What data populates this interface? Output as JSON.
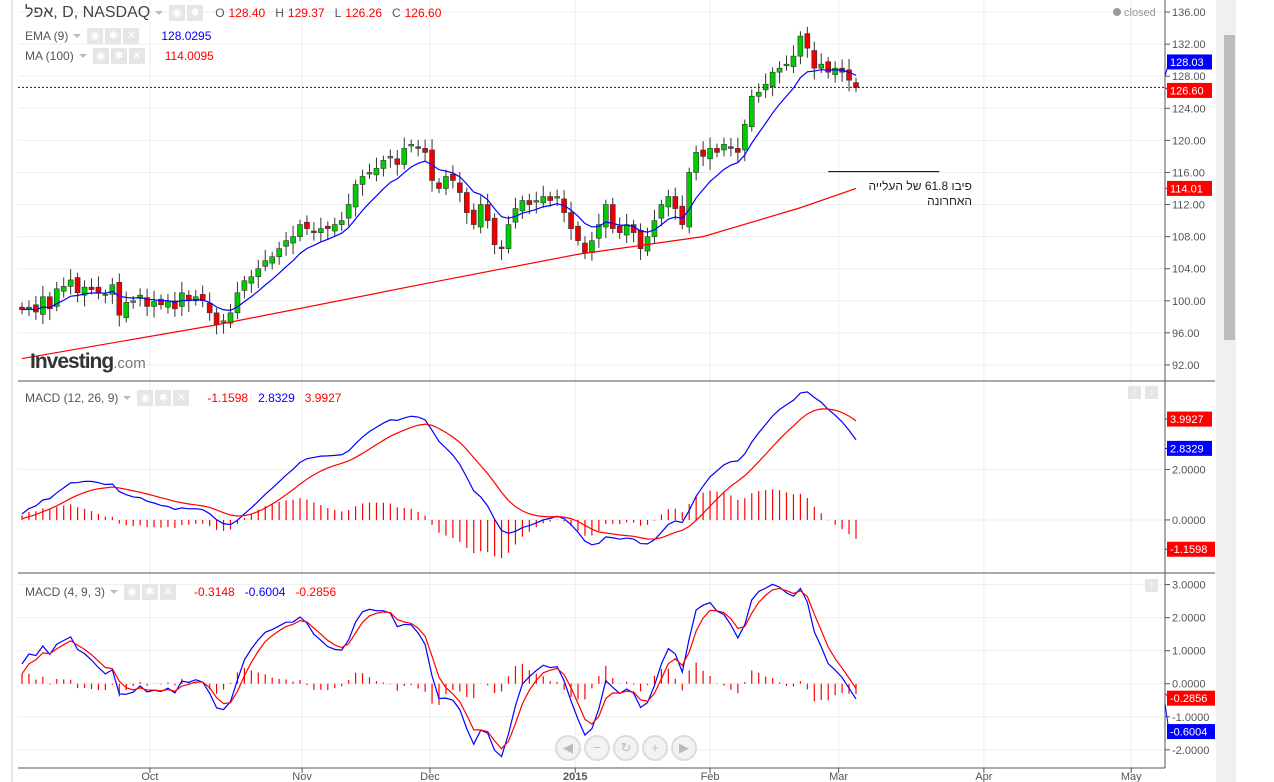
{
  "header": {
    "symbol_title": "אפל, D, NASDAQ",
    "ohlc": {
      "o_label": "O",
      "o": "128.40",
      "h_label": "H",
      "h": "129.37",
      "l_label": "L",
      "l": "126.26",
      "c_label": "C",
      "c": "126.60"
    },
    "status": "closed"
  },
  "indicators": {
    "ema": {
      "label": "EMA (9)",
      "value": "128.0295"
    },
    "ma": {
      "label": "MA (100)",
      "value": "114.0095"
    },
    "macd1": {
      "label": "MACD (12, 26, 9)",
      "hist": "-1.1598",
      "macd": "2.8329",
      "signal": "3.9927"
    },
    "macd2": {
      "label": "MACD (4, 9, 3)",
      "hist": "-0.3148",
      "macd": "-0.6004",
      "signal": "-0.2856"
    }
  },
  "logo": {
    "main": "Investing",
    "suffix": ".com"
  },
  "annotation": {
    "line1": "פיבו 61.8 של העלייה",
    "line2": "האחרונה",
    "price": 116.1,
    "from_bar": 116,
    "to_bar": 132
  },
  "nav": {
    "prev": "◀",
    "zoom_out": "−",
    "reset": "↻",
    "zoom_in": "+",
    "next": "▶"
  },
  "pane_buttons": {
    "up": "↑",
    "down": "↓"
  },
  "colors": {
    "up": "#00cc00",
    "down": "#ee0000",
    "ema": "#0000ff",
    "ma": "#ff0000",
    "macd": "#0000ff",
    "signal": "#ff0000",
    "hist": "#ff0000"
  },
  "chart_data": {
    "type": "candlestick",
    "x_ticks": [
      {
        "label": "Oct",
        "bar": 18.4
      },
      {
        "label": "Nov",
        "bar": 40.3
      },
      {
        "label": "Dec",
        "bar": 58.7
      },
      {
        "label": "2015",
        "bar": 79.6
      },
      {
        "label": "Feb",
        "bar": 99
      },
      {
        "label": "Mar",
        "bar": 117.5
      },
      {
        "label": "Apr",
        "bar": 138.4
      },
      {
        "label": "May",
        "bar": 159.6
      }
    ],
    "price_axis": {
      "ticks": [
        "136.00",
        "132.00",
        "128.00",
        "124.00",
        "120.00",
        "116.00",
        "112.00",
        "108.00",
        "104.00",
        "100.00",
        "96.00",
        "92.00"
      ],
      "range": [
        90,
        137.5
      ]
    },
    "price_labels": [
      {
        "value": "128.03",
        "color": "#0000ff"
      },
      {
        "value": "126.60",
        "color": "#ff0000"
      },
      {
        "value": "114.01",
        "color": "#ff0000"
      }
    ],
    "last_price": 126.6,
    "close": [
      98.9,
      99.2,
      98.6,
      100.5,
      99.0,
      101.5,
      101.8,
      102.6,
      101.0,
      101.7,
      101.4,
      101.0,
      100.8,
      102.0,
      98.2,
      99.8,
      100.0,
      100.7,
      99.3,
      99.9,
      99.5,
      100.0,
      99.0,
      101.0,
      100.0,
      100.5,
      100.0,
      98.5,
      97.0,
      97.5,
      98.5,
      101.0,
      102.5,
      103.0,
      104.0,
      105.0,
      105.5,
      106.5,
      107.5,
      108.0,
      109.5,
      109.0,
      108.5,
      109.0,
      109.0,
      109.5,
      110.0,
      112.0,
      114.5,
      115.5,
      116.0,
      116.5,
      117.5,
      118.0,
      117.0,
      119.0,
      119.5,
      119.0,
      118.5,
      115.0,
      114.0,
      115.5,
      115.0,
      113.5,
      111.0,
      109.5,
      112.0,
      110.0,
      107.0,
      106.5,
      109.5,
      111.5,
      112.5,
      112.0,
      112.5,
      113.0,
      112.5,
      113.0,
      111.0,
      109.0,
      107.5,
      106.0,
      107.5,
      109.5,
      112.0,
      109.0,
      108.5,
      109.5,
      108.5,
      106.5,
      108.0,
      110.0,
      112.0,
      113.0,
      111.5,
      109.5,
      116.0,
      118.5,
      118.0,
      119.0,
      118.5,
      119.5,
      119.0,
      118.5,
      122.0,
      125.5,
      126.0,
      127.0,
      128.5,
      129.0,
      129.5,
      130.5,
      133.0,
      131.5,
      129.0,
      129.5,
      128.5,
      129.0,
      128.5,
      127.5,
      126.6
    ],
    "ma100_points": [
      [
        0,
        92.8
      ],
      [
        28,
        97
      ],
      [
        59,
        102.3
      ],
      [
        80,
        105.8
      ],
      [
        98,
        108
      ],
      [
        112,
        111.6
      ],
      [
        120,
        114.0
      ]
    ],
    "macd1_axis": {
      "ticks": [
        "2.0000",
        "0.0000"
      ],
      "range": [
        -2.1,
        5.5
      ],
      "labels": [
        {
          "value": "3.9927",
          "color": "#ff0000"
        },
        {
          "value": "2.8329",
          "color": "#0000ff"
        },
        {
          "value": "-1.1598",
          "color": "#ff0000"
        }
      ]
    },
    "macd2_axis": {
      "ticks": [
        "3.0000",
        "2.0000",
        "1.0000",
        "0.0000",
        "-1.0000",
        "-2.0000"
      ],
      "range": [
        -2.55,
        3.35
      ],
      "labels": [
        {
          "value": "-0.2856",
          "color": "#ff0000"
        },
        {
          "value": "-0.6004",
          "color": "#0000ff"
        }
      ]
    }
  }
}
